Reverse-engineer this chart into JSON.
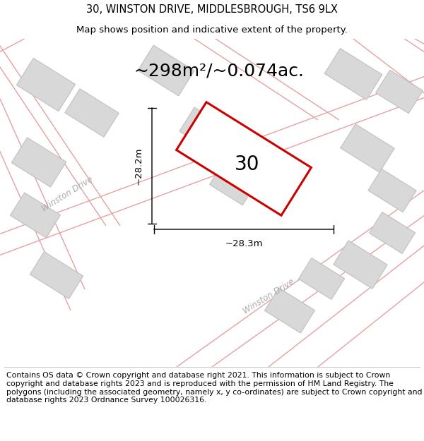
{
  "title": "30, WINSTON DRIVE, MIDDLESBROUGH, TS6 9LX",
  "subtitle": "Map shows position and indicative extent of the property.",
  "area_label": "~298m²/~0.074ac.",
  "property_number": "30",
  "dim_width": "~28.3m",
  "dim_height": "~28.2m",
  "map_bg": "#ebebeb",
  "plot_color_fill": "#ffffff",
  "plot_color_edge": "#cc0000",
  "road_line_color": "#e8a0a0",
  "building_color": "#d8d8d8",
  "building_edge": "#c0c0c0",
  "footer_text": "Contains OS data © Crown copyright and database right 2021. This information is subject to Crown copyright and database rights 2023 and is reproduced with the permission of HM Land Registry. The polygons (including the associated geometry, namely x, y co-ordinates) are subject to Crown copyright and database rights 2023 Ordnance Survey 100026316.",
  "title_fontsize": 10.5,
  "subtitle_fontsize": 9.5,
  "footer_fontsize": 7.8,
  "road_label_color": "#aaaaaa",
  "road_label_fontsize": 8.5,
  "area_label_fontsize": 18,
  "property_number_fontsize": 20,
  "dim_fontsize": 9.5
}
